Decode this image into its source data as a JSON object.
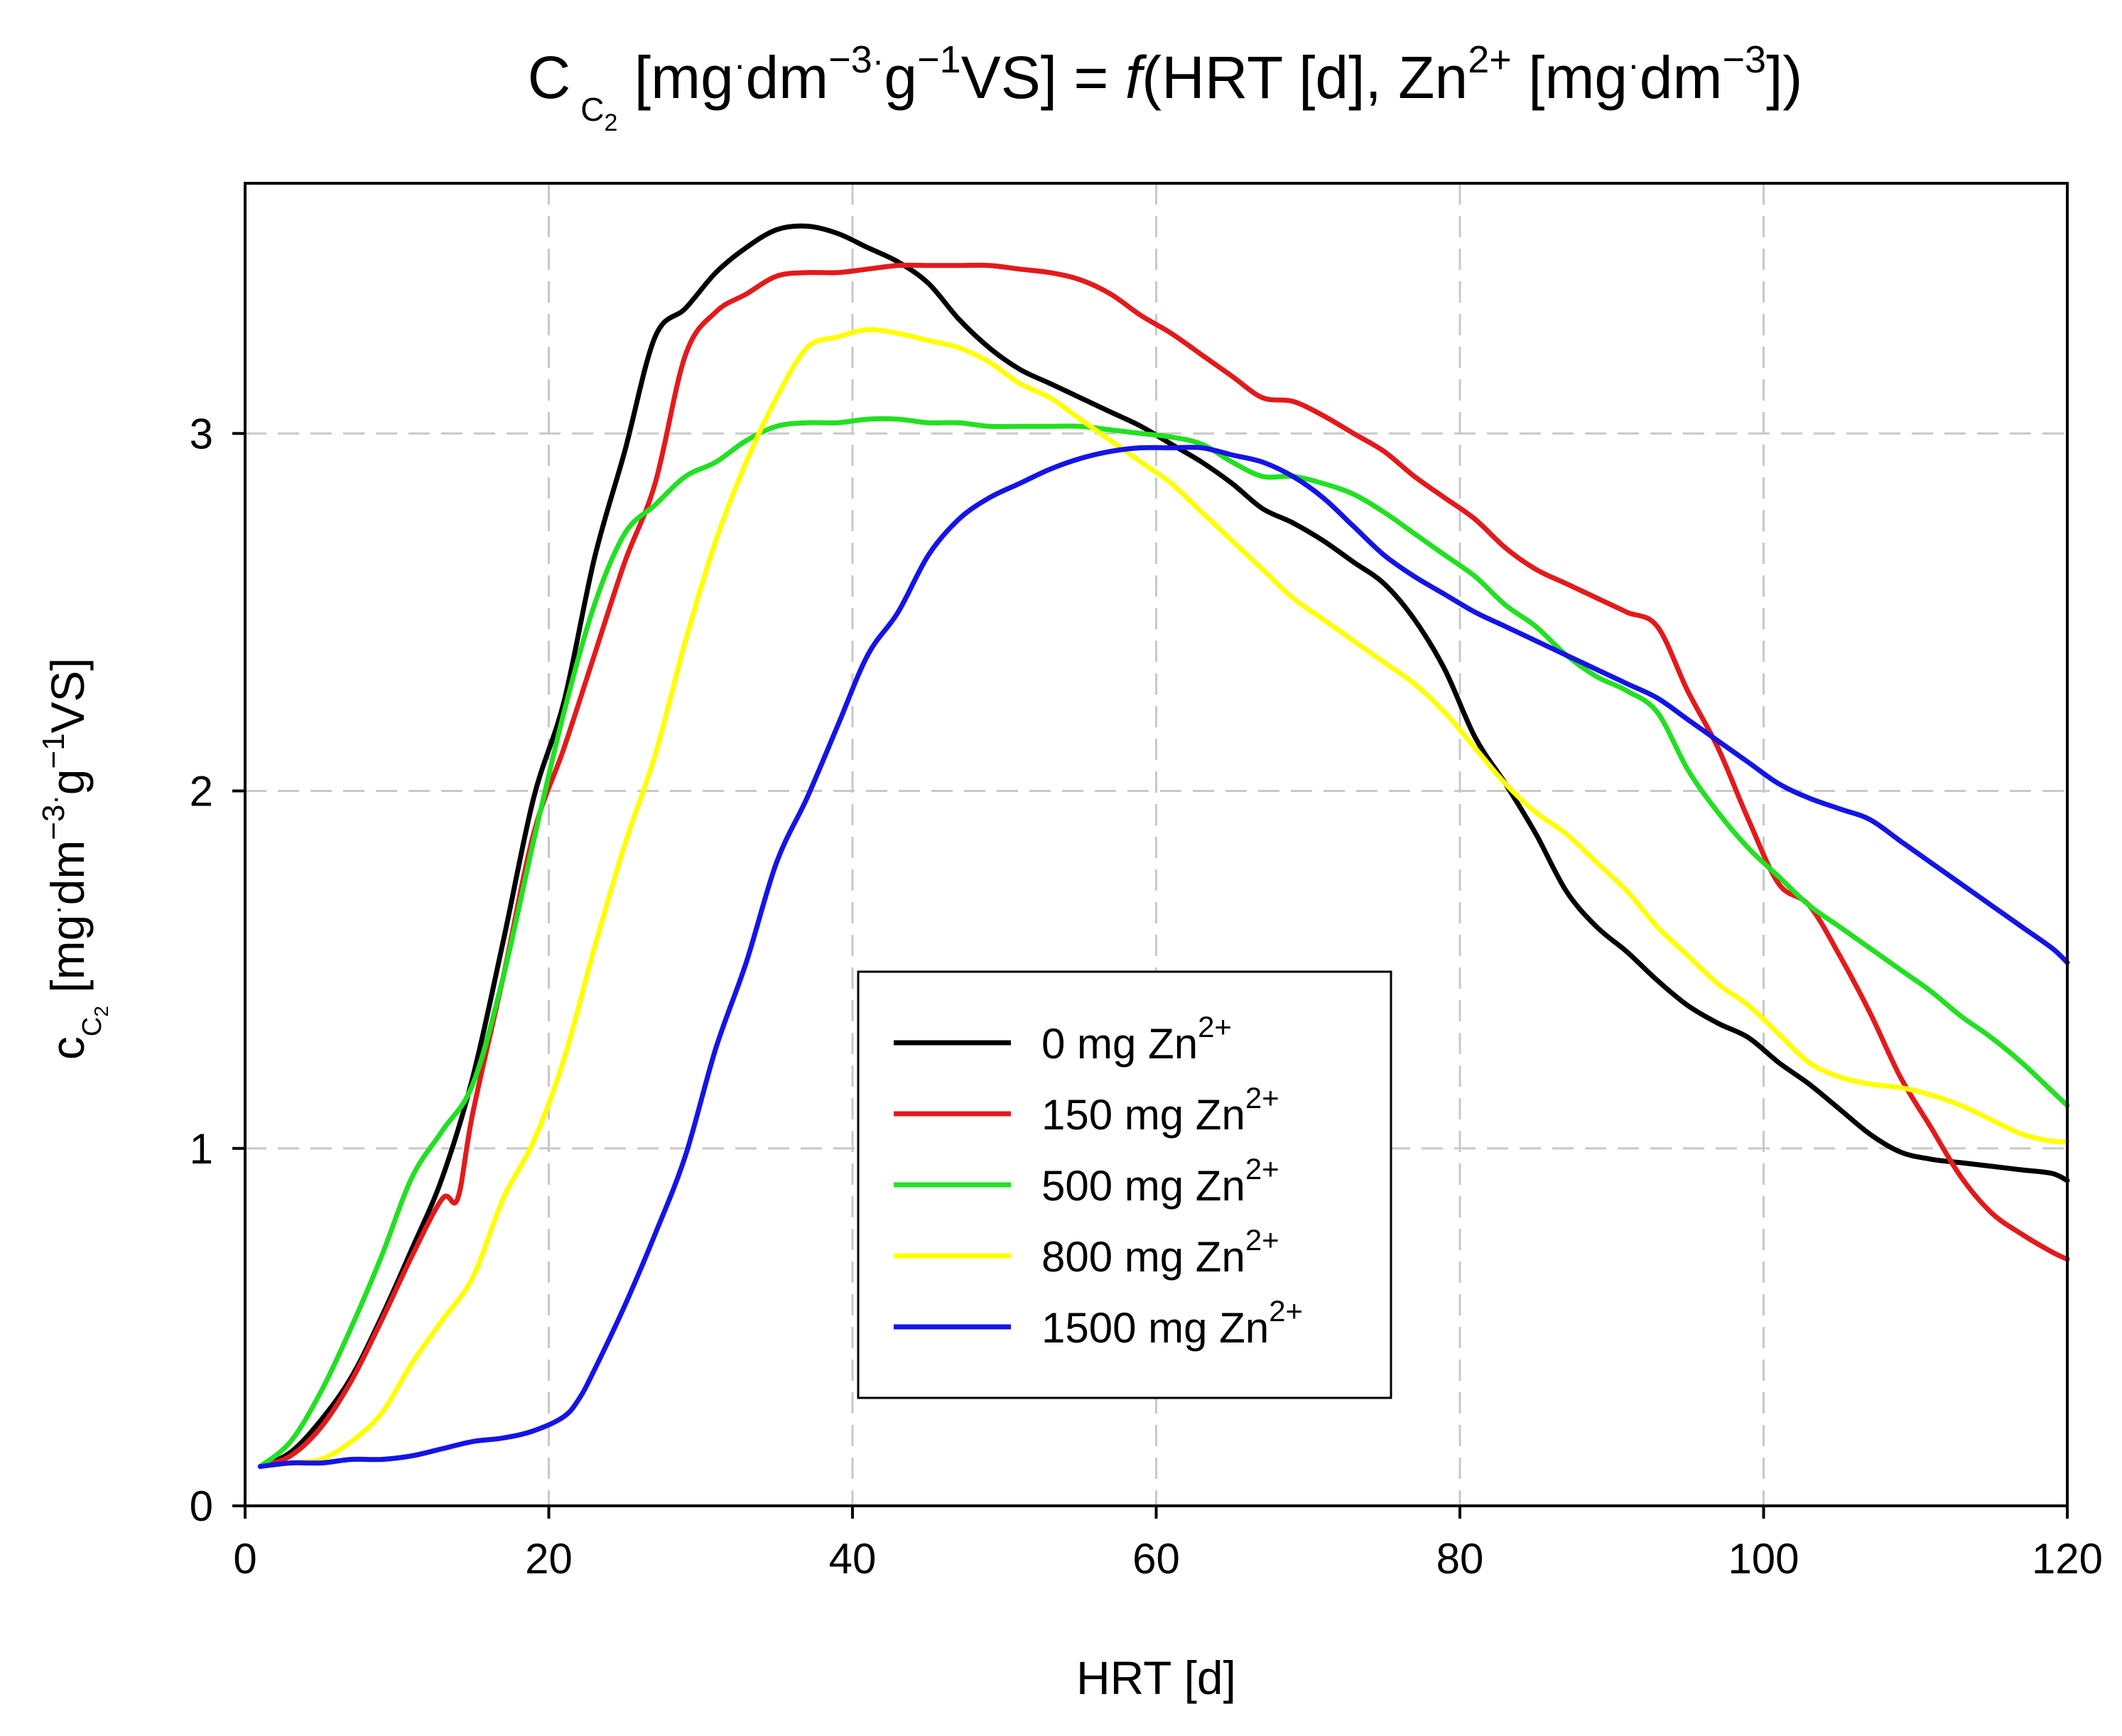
{
  "chart_data": {
    "type": "line",
    "title": {
      "main": "C",
      "sub": "C",
      "sub2": "2",
      "t1": " [mg",
      "dot": "·",
      "t2": "dm",
      "e1": "−3",
      "t3": "g",
      "e2": "−1",
      "t4": "VS] = ",
      "f": "f",
      "t5": "(HRT [d], Zn",
      "e3": "2+",
      "t6": " [mg",
      "t7": "dm",
      "e4": "−3",
      "t8": "])"
    },
    "xlabel": "HRT [d]",
    "ylabel": {
      "main": "c",
      "sub": "C",
      "sub2": "2",
      "t1": " [mg",
      "dot": "·",
      "t2": "dm",
      "e1": "−3",
      "t3": "g",
      "e2": "−1",
      "t4": "VS]"
    },
    "xlim": [
      0,
      120
    ],
    "ylim": [
      0,
      3.7
    ],
    "xticks": [
      0,
      20,
      40,
      60,
      80,
      100,
      120
    ],
    "yticks": [
      0,
      1,
      2,
      3
    ],
    "grid": true,
    "legend_position": "center-bottom",
    "series": [
      {
        "name": "0 mg Zn",
        "name_sup": "2+",
        "color": "#000000",
        "x": [
          1,
          3,
          5,
          7,
          9,
          11,
          13,
          15,
          17,
          19,
          21,
          23,
          25,
          27,
          29,
          31,
          33,
          35,
          37,
          39,
          41,
          43,
          45,
          47,
          49,
          51,
          53,
          55,
          57,
          59,
          61,
          63,
          65,
          67,
          69,
          71,
          73,
          75,
          77,
          79,
          81,
          83,
          85,
          87,
          89,
          91,
          93,
          95,
          97,
          99,
          101,
          103,
          105,
          107,
          109,
          111,
          113,
          115,
          117,
          119,
          120
        ],
        "y": [
          0.11,
          0.15,
          0.24,
          0.36,
          0.53,
          0.72,
          0.92,
          1.2,
          1.58,
          1.98,
          2.25,
          2.65,
          2.95,
          3.27,
          3.35,
          3.45,
          3.52,
          3.57,
          3.58,
          3.56,
          3.52,
          3.48,
          3.42,
          3.32,
          3.24,
          3.18,
          3.14,
          3.1,
          3.06,
          3.02,
          2.97,
          2.92,
          2.86,
          2.79,
          2.75,
          2.7,
          2.64,
          2.58,
          2.48,
          2.34,
          2.15,
          2.02,
          1.88,
          1.72,
          1.62,
          1.55,
          1.47,
          1.4,
          1.35,
          1.31,
          1.24,
          1.18,
          1.11,
          1.04,
          0.99,
          0.97,
          0.96,
          0.95,
          0.94,
          0.93,
          0.91
        ]
      },
      {
        "name": "150 mg Zn",
        "name_sup": "2+",
        "color": "#e31a1c",
        "x": [
          1,
          3,
          5,
          7,
          9,
          11,
          13,
          14,
          15,
          17,
          19,
          21,
          23,
          25,
          27,
          29,
          31,
          33,
          35,
          37,
          39,
          41,
          43,
          45,
          47,
          49,
          51,
          53,
          55,
          57,
          59,
          61,
          63,
          65,
          67,
          69,
          71,
          73,
          75,
          77,
          79,
          81,
          83,
          85,
          87,
          89,
          91,
          93,
          95,
          97,
          99,
          101,
          103,
          105,
          107,
          109,
          111,
          113,
          115,
          117,
          119,
          120
        ],
        "y": [
          0.11,
          0.14,
          0.22,
          0.35,
          0.52,
          0.7,
          0.86,
          0.86,
          1.1,
          1.48,
          1.88,
          2.12,
          2.38,
          2.64,
          2.86,
          3.22,
          3.34,
          3.39,
          3.44,
          3.45,
          3.45,
          3.46,
          3.47,
          3.47,
          3.47,
          3.47,
          3.46,
          3.45,
          3.43,
          3.39,
          3.33,
          3.28,
          3.22,
          3.16,
          3.1,
          3.09,
          3.05,
          3.0,
          2.95,
          2.88,
          2.82,
          2.76,
          2.68,
          2.62,
          2.58,
          2.54,
          2.5,
          2.46,
          2.28,
          2.12,
          1.92,
          1.74,
          1.68,
          1.54,
          1.38,
          1.2,
          1.06,
          0.92,
          0.82,
          0.76,
          0.71,
          0.69
        ]
      },
      {
        "name": "500 mg Zn",
        "name_sup": "2+",
        "color": "#22e022",
        "x": [
          1,
          3,
          5,
          7,
          9,
          11,
          13,
          15,
          17,
          19,
          21,
          23,
          25,
          27,
          29,
          31,
          33,
          35,
          37,
          39,
          41,
          43,
          45,
          47,
          49,
          51,
          53,
          55,
          57,
          59,
          61,
          63,
          65,
          67,
          69,
          71,
          73,
          75,
          77,
          79,
          81,
          83,
          85,
          87,
          89,
          91,
          93,
          95,
          97,
          99,
          101,
          103,
          105,
          107,
          109,
          111,
          113,
          115,
          117,
          119,
          120
        ],
        "y": [
          0.11,
          0.18,
          0.32,
          0.5,
          0.7,
          0.92,
          1.05,
          1.18,
          1.48,
          1.86,
          2.22,
          2.52,
          2.72,
          2.8,
          2.88,
          2.92,
          2.98,
          3.02,
          3.03,
          3.03,
          3.04,
          3.04,
          3.03,
          3.03,
          3.02,
          3.02,
          3.02,
          3.02,
          3.01,
          3.0,
          2.99,
          2.97,
          2.92,
          2.88,
          2.88,
          2.86,
          2.83,
          2.78,
          2.72,
          2.66,
          2.6,
          2.52,
          2.46,
          2.38,
          2.32,
          2.28,
          2.22,
          2.06,
          1.94,
          1.84,
          1.76,
          1.68,
          1.62,
          1.56,
          1.5,
          1.44,
          1.37,
          1.31,
          1.24,
          1.16,
          1.12
        ]
      },
      {
        "name": "800 mg Zn",
        "name_sup": "2+",
        "color": "#ffff00",
        "x": [
          1,
          3,
          5,
          7,
          9,
          11,
          13,
          15,
          17,
          19,
          21,
          23,
          25,
          27,
          29,
          31,
          33,
          35,
          37,
          39,
          41,
          43,
          45,
          47,
          49,
          51,
          53,
          55,
          57,
          59,
          61,
          63,
          65,
          67,
          69,
          71,
          73,
          75,
          77,
          79,
          81,
          83,
          85,
          87,
          89,
          91,
          93,
          95,
          97,
          99,
          101,
          103,
          105,
          107,
          109,
          111,
          113,
          115,
          117,
          119,
          120
        ],
        "y": [
          0.11,
          0.12,
          0.13,
          0.18,
          0.26,
          0.4,
          0.52,
          0.64,
          0.86,
          1.02,
          1.25,
          1.56,
          1.85,
          2.1,
          2.42,
          2.7,
          2.92,
          3.1,
          3.24,
          3.27,
          3.29,
          3.28,
          3.26,
          3.24,
          3.2,
          3.14,
          3.1,
          3.04,
          2.98,
          2.92,
          2.86,
          2.78,
          2.7,
          2.62,
          2.54,
          2.48,
          2.42,
          2.36,
          2.3,
          2.22,
          2.12,
          2.02,
          1.94,
          1.88,
          1.8,
          1.72,
          1.62,
          1.54,
          1.46,
          1.4,
          1.32,
          1.24,
          1.2,
          1.18,
          1.17,
          1.15,
          1.12,
          1.08,
          1.04,
          1.02,
          1.02
        ]
      },
      {
        "name": "1500 mg Zn",
        "name_sup": "2+",
        "color": "#1414e6",
        "x": [
          1,
          3,
          5,
          7,
          9,
          11,
          13,
          15,
          17,
          19,
          21,
          22,
          23,
          25,
          27,
          29,
          31,
          33,
          35,
          37,
          39,
          41,
          43,
          45,
          47,
          49,
          51,
          53,
          55,
          57,
          59,
          61,
          63,
          65,
          67,
          69,
          71,
          73,
          75,
          77,
          79,
          81,
          83,
          85,
          87,
          89,
          91,
          93,
          95,
          97,
          99,
          101,
          103,
          105,
          107,
          109,
          111,
          113,
          115,
          117,
          119,
          120
        ],
        "y": [
          0.11,
          0.12,
          0.12,
          0.13,
          0.13,
          0.14,
          0.16,
          0.18,
          0.19,
          0.21,
          0.25,
          0.3,
          0.38,
          0.56,
          0.76,
          0.98,
          1.28,
          1.52,
          1.8,
          1.98,
          2.18,
          2.38,
          2.5,
          2.66,
          2.76,
          2.82,
          2.86,
          2.9,
          2.93,
          2.95,
          2.96,
          2.96,
          2.96,
          2.94,
          2.92,
          2.88,
          2.82,
          2.74,
          2.66,
          2.6,
          2.55,
          2.5,
          2.46,
          2.42,
          2.38,
          2.34,
          2.3,
          2.26,
          2.2,
          2.14,
          2.08,
          2.02,
          1.98,
          1.95,
          1.92,
          1.86,
          1.8,
          1.74,
          1.68,
          1.62,
          1.56,
          1.52
        ]
      }
    ]
  }
}
